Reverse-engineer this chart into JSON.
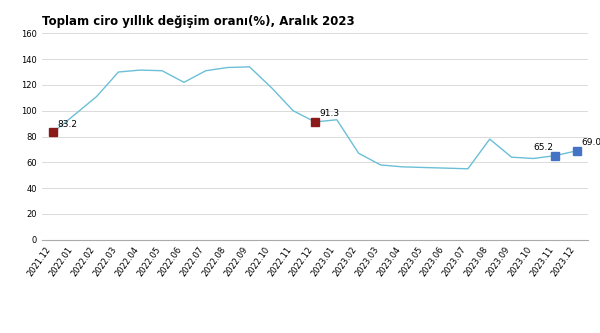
{
  "title": "Toplam ciro yıllık değişim oranı(%), Aralık 2023",
  "title_fontsize": 8.5,
  "line_color": "#6BBFD6",
  "marker_color_red": "#8B1A1A",
  "marker_color_blue": "#4472C4",
  "background_color": "#FFFFFF",
  "ylim": [
    0,
    160
  ],
  "yticks": [
    0,
    20,
    40,
    60,
    80,
    100,
    120,
    140,
    160
  ],
  "labels": [
    "2021.12",
    "2022.01",
    "2022.02",
    "2022.03",
    "2022.04",
    "2022.05",
    "2022.06",
    "2022.07",
    "2022.08",
    "2022.09",
    "2022.10",
    "2022.11",
    "2022.12",
    "2023.01",
    "2023.02",
    "2023.03",
    "2023.04",
    "2023.05",
    "2023.06",
    "2023.07",
    "2023.08",
    "2023.09",
    "2023.10",
    "2023.11",
    "2023.12"
  ],
  "values": [
    83.2,
    97.0,
    111.0,
    130.0,
    131.5,
    131.0,
    122.0,
    131.0,
    133.5,
    134.0,
    118.0,
    100.0,
    91.3,
    93.0,
    67.0,
    58.0,
    56.5,
    56.0,
    55.5,
    55.0,
    78.0,
    64.0,
    63.0,
    65.2,
    69.0
  ],
  "annotated_indices": [
    0,
    12,
    23,
    24
  ],
  "annotated_labels": [
    "83.2",
    "91.3",
    "65.2",
    "69.0"
  ],
  "annotated_colors": [
    "red",
    "red",
    "blue",
    "blue"
  ],
  "grid_color": "#CCCCCC",
  "tick_fontsize": 6.0
}
